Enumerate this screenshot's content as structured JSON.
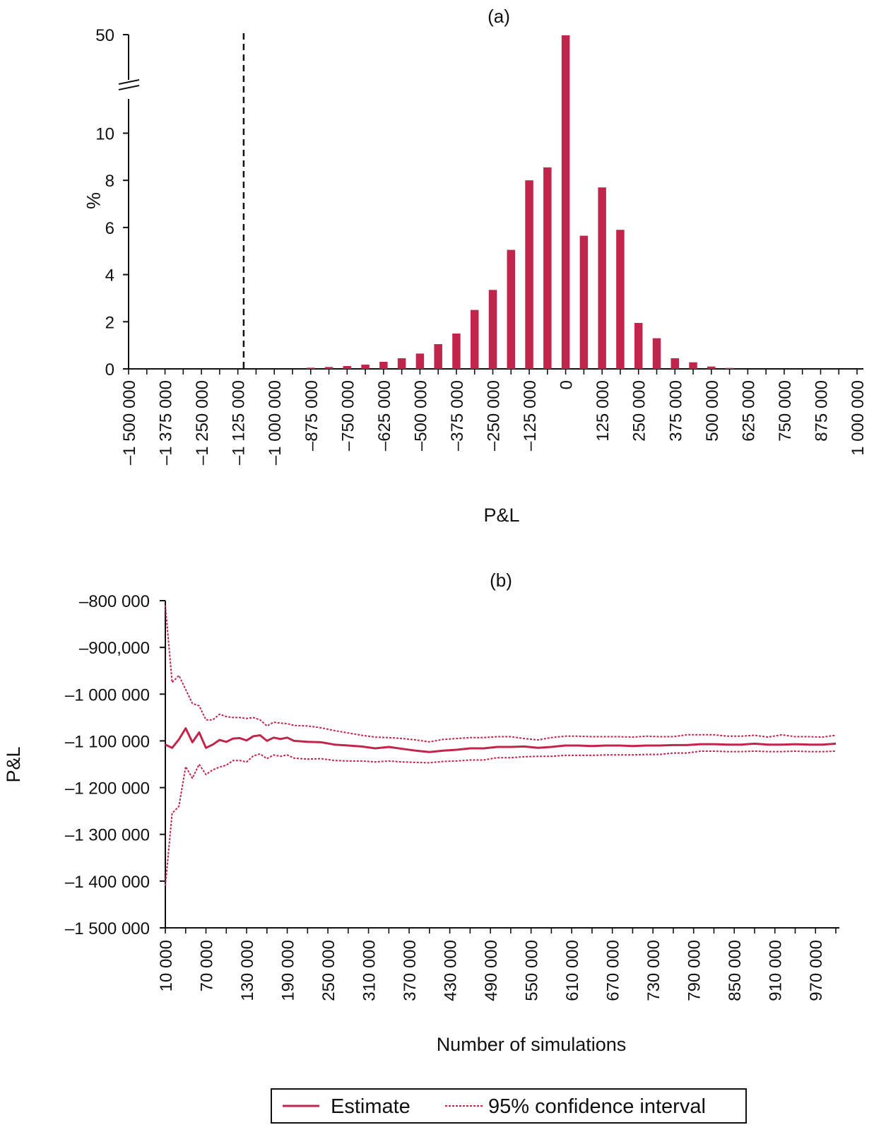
{
  "chart_data": [
    {
      "panel_label": "(a)",
      "type": "bar",
      "xlabel": "P&L",
      "ylabel": "%",
      "y_ticks": [
        "0",
        "2",
        "4",
        "6",
        "8",
        "10",
        "50"
      ],
      "y_axis_break": true,
      "y_break_between": [
        10,
        50
      ],
      "x_tick_labels": [
        "–1 500 000",
        "–1 375 000",
        "–1 250 000",
        "–1 125 000",
        "–1 000 000",
        "–875 000",
        "–750 000",
        "–625 000",
        "–500 000",
        "–375 000",
        "–250 000",
        "–125 000",
        "0",
        "125 000",
        "250 000",
        "375 000",
        "500 000",
        "625 000",
        "750 000",
        "875 000",
        "1 000 000"
      ],
      "x_min": -1500000,
      "x_max": 1000000,
      "bin_width": 62500,
      "bars": [
        {
          "x": -875000,
          "value": 0.05
        },
        {
          "x": -812500,
          "value": 0.08
        },
        {
          "x": -750000,
          "value": 0.12
        },
        {
          "x": -687500,
          "value": 0.18
        },
        {
          "x": -625000,
          "value": 0.3
        },
        {
          "x": -562500,
          "value": 0.45
        },
        {
          "x": -500000,
          "value": 0.65
        },
        {
          "x": -437500,
          "value": 1.05
        },
        {
          "x": -375000,
          "value": 1.5
        },
        {
          "x": -312500,
          "value": 2.5
        },
        {
          "x": -250000,
          "value": 3.35
        },
        {
          "x": -187500,
          "value": 5.05
        },
        {
          "x": -125000,
          "value": 8.0
        },
        {
          "x": -62500,
          "value": 8.55
        },
        {
          "x": 0,
          "value": 49.5
        },
        {
          "x": 62500,
          "value": 5.65
        },
        {
          "x": 125000,
          "value": 7.7
        },
        {
          "x": 187500,
          "value": 5.9
        },
        {
          "x": 250000,
          "value": 1.95
        },
        {
          "x": 312500,
          "value": 1.3
        },
        {
          "x": 375000,
          "value": 0.45
        },
        {
          "x": 437500,
          "value": 0.28
        },
        {
          "x": 500000,
          "value": 0.1
        },
        {
          "x": 562500,
          "value": 0.04
        }
      ],
      "reference_line_x": -1105000,
      "bar_color": "#C2254C"
    },
    {
      "panel_label": "(b)",
      "type": "line",
      "xlabel": "Number of simulations",
      "ylabel": "P&L",
      "y_tick_values": [
        -800000,
        -900000,
        -1000000,
        -1100000,
        -1200000,
        -1300000,
        -1400000,
        -1500000
      ],
      "y_tick_labels": [
        "–800 000",
        "–900,000",
        "–1 000 000",
        "–1 100 000",
        "–1 200 000",
        "–1 300 000",
        "–1 400 000",
        "–1 500 000"
      ],
      "ylim": [
        -1500000,
        -800000
      ],
      "x_tick_values": [
        10000,
        70000,
        130000,
        190000,
        250000,
        310000,
        370000,
        430000,
        490000,
        550000,
        610000,
        670000,
        730000,
        790000,
        850000,
        910000,
        970000
      ],
      "x_tick_labels": [
        "10 000",
        "70 000",
        "130 000",
        "190 000",
        "250 000",
        "310 000",
        "370 000",
        "430 000",
        "490 000",
        "550 000",
        "610 000",
        "670 000",
        "730 000",
        "790 000",
        "850 000",
        "910 000",
        "970 000"
      ],
      "xlim": [
        10000,
        1000000
      ],
      "x": [
        10000,
        20000,
        30000,
        40000,
        50000,
        60000,
        70000,
        80000,
        90000,
        100000,
        110000,
        120000,
        130000,
        140000,
        150000,
        160000,
        170000,
        180000,
        190000,
        200000,
        220000,
        240000,
        260000,
        280000,
        300000,
        320000,
        340000,
        360000,
        380000,
        400000,
        420000,
        440000,
        460000,
        480000,
        500000,
        520000,
        540000,
        560000,
        580000,
        600000,
        620000,
        640000,
        660000,
        680000,
        700000,
        720000,
        740000,
        760000,
        780000,
        800000,
        820000,
        840000,
        860000,
        880000,
        900000,
        920000,
        940000,
        960000,
        980000,
        1000000
      ],
      "series": [
        {
          "name": "Estimate",
          "style": "solid",
          "color": "#C2254C",
          "values": [
            -1108000,
            -1115000,
            -1097000,
            -1073000,
            -1103000,
            -1082000,
            -1115000,
            -1108000,
            -1098000,
            -1102000,
            -1095000,
            -1094000,
            -1099000,
            -1090000,
            -1088000,
            -1100000,
            -1093000,
            -1096000,
            -1093000,
            -1100000,
            -1102000,
            -1103000,
            -1108000,
            -1110000,
            -1112000,
            -1116000,
            -1113000,
            -1117000,
            -1121000,
            -1124000,
            -1121000,
            -1119000,
            -1116000,
            -1116000,
            -1113000,
            -1113000,
            -1112000,
            -1115000,
            -1113000,
            -1110000,
            -1110000,
            -1111000,
            -1110000,
            -1110000,
            -1111000,
            -1110000,
            -1110000,
            -1109000,
            -1109000,
            -1107000,
            -1107000,
            -1108000,
            -1108000,
            -1106000,
            -1108000,
            -1108000,
            -1107000,
            -1108000,
            -1108000,
            -1106000
          ]
        },
        {
          "name": "95% confidence interval (upper)",
          "style": "dotted",
          "color": "#C2254C",
          "values": [
            -810000,
            -975000,
            -960000,
            -990000,
            -1020000,
            -1025000,
            -1055000,
            -1055000,
            -1043000,
            -1048000,
            -1050000,
            -1050000,
            -1052000,
            -1050000,
            -1055000,
            -1068000,
            -1060000,
            -1062000,
            -1063000,
            -1067000,
            -1068000,
            -1072000,
            -1078000,
            -1083000,
            -1088000,
            -1092000,
            -1093000,
            -1095000,
            -1098000,
            -1102000,
            -1097000,
            -1095000,
            -1093000,
            -1093000,
            -1091000,
            -1091000,
            -1095000,
            -1098000,
            -1093000,
            -1090000,
            -1090000,
            -1091000,
            -1091000,
            -1091000,
            -1092000,
            -1090000,
            -1091000,
            -1091000,
            -1087000,
            -1087000,
            -1087000,
            -1090000,
            -1090000,
            -1088000,
            -1092000,
            -1087000,
            -1091000,
            -1091000,
            -1092000,
            -1088000
          ]
        },
        {
          "name": "95% confidence interval (lower)",
          "style": "dotted",
          "color": "#C2254C",
          "values": [
            -1410000,
            -1255000,
            -1240000,
            -1155000,
            -1180000,
            -1150000,
            -1172000,
            -1162000,
            -1156000,
            -1152000,
            -1142000,
            -1142000,
            -1145000,
            -1132000,
            -1128000,
            -1138000,
            -1130000,
            -1133000,
            -1130000,
            -1137000,
            -1139000,
            -1138000,
            -1142000,
            -1143000,
            -1143000,
            -1145000,
            -1143000,
            -1145000,
            -1146000,
            -1147000,
            -1144000,
            -1143000,
            -1141000,
            -1141000,
            -1136000,
            -1136000,
            -1134000,
            -1133000,
            -1133000,
            -1131000,
            -1131000,
            -1131000,
            -1130000,
            -1130000,
            -1130000,
            -1129000,
            -1129000,
            -1126000,
            -1126000,
            -1122000,
            -1122000,
            -1123000,
            -1123000,
            -1122000,
            -1123000,
            -1123000,
            -1122000,
            -1123000,
            -1123000,
            -1122000
          ]
        }
      ],
      "legend": [
        {
          "label": "Estimate",
          "style": "solid"
        },
        {
          "label": "95% confidence interval",
          "style": "dotted"
        }
      ],
      "legend_position": "bottom-center"
    }
  ]
}
